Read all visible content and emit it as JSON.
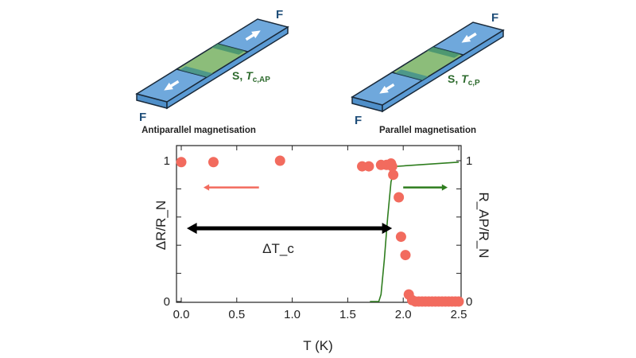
{
  "diagrams": [
    {
      "caption": "Antiparallel magnetisation",
      "f_label": "F",
      "s_label": "S, ",
      "tc_label": "T",
      "tc_sub": "c,AP",
      "left_arrow": "left",
      "right_arrow": "right"
    },
    {
      "caption": "Parallel magnetisation",
      "f_label": "F",
      "s_label": "S, ",
      "tc_label": "T",
      "tc_sub": "c,P",
      "left_arrow": "left",
      "right_arrow": "left"
    }
  ],
  "colors": {
    "points": "#f26b5e",
    "curve": "#2e7d1e",
    "ferromagnet": "#6fa8dc",
    "superconductor": "#8fbf6f",
    "arrow_dtc": "#000000"
  },
  "chart_data": {
    "type": "scatter",
    "xlabel": "T (K)",
    "ylabel_left": "ΔR/R_N",
    "ylabel_right": "R_AP/R_N",
    "xlim": [
      0,
      2.5
    ],
    "ylim": [
      0,
      1
    ],
    "x_ticks": [
      "0.0",
      "0.5",
      "1.0",
      "1.5",
      "2.0",
      "2.5"
    ],
    "y_ticks_left": [
      "0",
      "1"
    ],
    "y_ticks_right": [
      "0",
      "1"
    ],
    "annotation": "ΔT_c",
    "series": [
      {
        "type": "scatter",
        "axis": "left",
        "points": [
          [
            0.0,
            0.99
          ],
          [
            0.29,
            0.99
          ],
          [
            0.89,
            1.0
          ],
          [
            1.63,
            0.96
          ],
          [
            1.69,
            0.96
          ],
          [
            1.8,
            0.97
          ],
          [
            1.85,
            0.97
          ],
          [
            1.89,
            0.98
          ],
          [
            1.9,
            0.96
          ],
          [
            1.91,
            0.9
          ],
          [
            1.96,
            0.74
          ],
          [
            1.98,
            0.46
          ],
          [
            2.02,
            0.33
          ],
          [
            2.05,
            0.05
          ],
          [
            2.08,
            0.01
          ],
          [
            2.11,
            0.0
          ],
          [
            2.14,
            0.0
          ],
          [
            2.17,
            0.0
          ],
          [
            2.2,
            0.0
          ],
          [
            2.23,
            0.0
          ],
          [
            2.26,
            0.0
          ],
          [
            2.29,
            0.0
          ],
          [
            2.32,
            0.0
          ],
          [
            2.35,
            0.0
          ],
          [
            2.38,
            0.0
          ],
          [
            2.41,
            0.0
          ],
          [
            2.44,
            0.0
          ],
          [
            2.47,
            0.0
          ],
          [
            2.5,
            0.0
          ]
        ]
      },
      {
        "type": "line",
        "axis": "right",
        "points": [
          [
            1.7,
            0.0
          ],
          [
            1.78,
            0.0
          ],
          [
            1.8,
            0.05
          ],
          [
            1.83,
            0.3
          ],
          [
            1.86,
            0.6
          ],
          [
            1.89,
            0.85
          ],
          [
            1.91,
            0.91
          ],
          [
            1.94,
            0.96
          ],
          [
            2.5,
            0.99
          ]
        ]
      }
    ],
    "arrows": [
      {
        "role": "delta-tc",
        "from": [
          0.05,
          0.52
        ],
        "to": [
          1.9,
          0.52
        ],
        "double": true
      },
      {
        "role": "left-axis-indicator",
        "from": [
          0.7,
          0.81
        ],
        "to": [
          0.2,
          0.81
        ]
      },
      {
        "role": "right-axis-indicator",
        "from": [
          2.0,
          0.81
        ],
        "to": [
          2.4,
          0.81
        ]
      }
    ]
  }
}
